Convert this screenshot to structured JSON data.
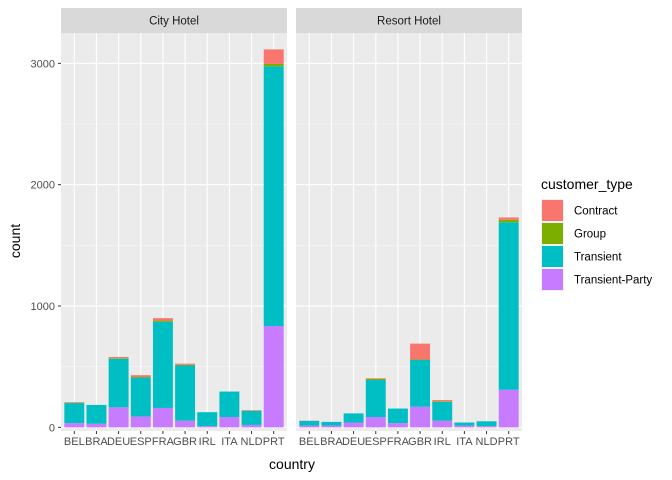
{
  "chart_data": {
    "type": "bar",
    "stacked": true,
    "facet_by": "hotel",
    "xlabel": "country",
    "ylabel": "count",
    "ylim": [
      -30,
      3250
    ],
    "yticks": [
      0,
      1000,
      2000,
      3000
    ],
    "grid": true,
    "legend_position": "right",
    "legend_title": "customer_type",
    "categories": [
      "BEL",
      "BRA",
      "DEU",
      "ESP",
      "FRA",
      "GBR",
      "IRL",
      "ITA",
      "NLD",
      "PRT"
    ],
    "series": [
      {
        "name": "Contract",
        "color": "#F8766D"
      },
      {
        "name": "Group",
        "color": "#7CAE00"
      },
      {
        "name": "Transient",
        "color": "#00BFC4"
      },
      {
        "name": "Transient-Party",
        "color": "#C77CFF"
      }
    ],
    "panels": [
      {
        "title": "City Hotel",
        "values": {
          "Contract": [
            5,
            0,
            10,
            15,
            20,
            10,
            0,
            0,
            5,
            120
          ],
          "Group": [
            3,
            0,
            5,
            5,
            10,
            5,
            0,
            0,
            2,
            20
          ],
          "Transient": [
            165,
            155,
            400,
            320,
            710,
            455,
            115,
            210,
            115,
            2140
          ],
          "Transient-Party": [
            35,
            30,
            165,
            90,
            160,
            55,
            10,
            85,
            20,
            835
          ]
        }
      },
      {
        "title": "Resort Hotel",
        "values": {
          "Contract": [
            2,
            0,
            0,
            5,
            0,
            130,
            10,
            0,
            0,
            20
          ],
          "Group": [
            0,
            0,
            0,
            10,
            0,
            5,
            5,
            0,
            0,
            20
          ],
          "Transient": [
            38,
            30,
            75,
            305,
            120,
            385,
            155,
            25,
            40,
            1380
          ],
          "Transient-Party": [
            15,
            15,
            40,
            85,
            35,
            170,
            55,
            15,
            10,
            310
          ]
        }
      }
    ]
  }
}
